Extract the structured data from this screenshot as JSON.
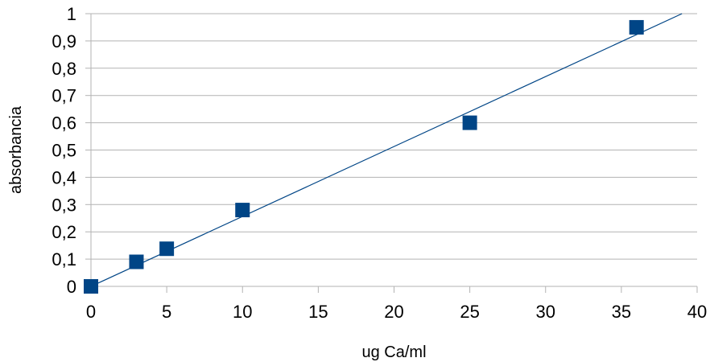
{
  "chart_data": {
    "type": "scatter",
    "title": "",
    "xlabel": "ug Ca/ml",
    "ylabel": "absorbancia",
    "xlim": [
      0,
      40
    ],
    "ylim": [
      0,
      1
    ],
    "x_ticks": [
      "0",
      "5",
      "10",
      "15",
      "20",
      "25",
      "30",
      "35",
      "40"
    ],
    "y_ticks": [
      "0",
      "0,1",
      "0,2",
      "0,3",
      "0,4",
      "0,5",
      "0,6",
      "0,7",
      "0,8",
      "0,9",
      "1"
    ],
    "grid": "horizontal",
    "legend": "none",
    "series": [
      {
        "x": [
          0,
          3,
          5,
          10,
          25,
          36
        ],
        "y": [
          0.0,
          0.09,
          0.138,
          0.28,
          0.6,
          0.95
        ],
        "marker": "square",
        "color": "#004586"
      }
    ],
    "trendline": {
      "type": "linear",
      "color": "#004586",
      "from": [
        0,
        0.0
      ],
      "to": [
        39,
        1.0
      ]
    }
  }
}
